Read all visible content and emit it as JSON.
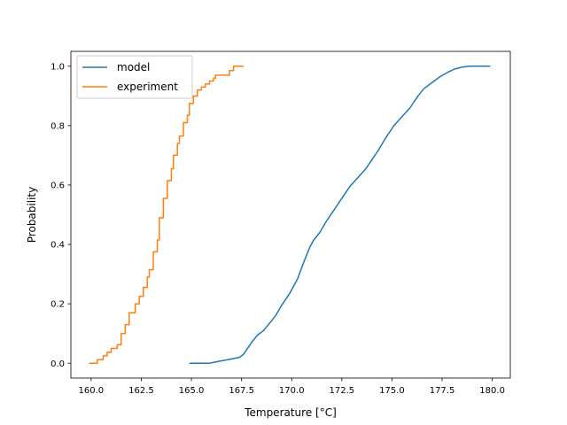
{
  "chart_data": {
    "type": "line",
    "title": "",
    "xlabel": "Temperature [°C]",
    "ylabel": "Probability",
    "xlim": [
      158.99,
      180.9
    ],
    "ylim": [
      -0.05,
      1.05
    ],
    "x_ticks": [
      160.0,
      162.5,
      165.0,
      167.5,
      170.0,
      172.5,
      175.0,
      177.5,
      180.0
    ],
    "x_tick_labels": [
      "160.0",
      "162.5",
      "165.0",
      "167.5",
      "170.0",
      "172.5",
      "175.0",
      "177.5",
      "180.0"
    ],
    "y_ticks": [
      0.0,
      0.2,
      0.4,
      0.6,
      0.8,
      1.0
    ],
    "y_tick_labels": [
      "0.0",
      "0.2",
      "0.4",
      "0.6",
      "0.8",
      "1.0"
    ],
    "grid": false,
    "legend": {
      "placement": "top-left",
      "entries": [
        "model",
        "experiment"
      ]
    },
    "series": [
      {
        "name": "model",
        "color": "#1f77b4",
        "style": "line",
        "x": [
          164.9,
          165.4,
          165.9,
          166.4,
          166.9,
          167.4,
          167.6,
          167.8,
          168.0,
          168.3,
          168.6,
          168.9,
          169.2,
          169.5,
          169.9,
          170.3,
          170.6,
          170.9,
          171.1,
          171.4,
          171.7,
          172.0,
          172.3,
          172.6,
          172.9,
          173.3,
          173.7,
          174.0,
          174.3,
          174.7,
          175.1,
          175.5,
          175.9,
          176.3,
          176.6,
          177.0,
          177.4,
          177.8,
          178.1,
          178.5,
          178.9,
          179.4,
          179.9
        ],
        "y": [
          0.0,
          0.0,
          0.0,
          0.007,
          0.013,
          0.02,
          0.03,
          0.05,
          0.07,
          0.095,
          0.11,
          0.135,
          0.16,
          0.195,
          0.235,
          0.285,
          0.34,
          0.39,
          0.415,
          0.44,
          0.475,
          0.505,
          0.535,
          0.565,
          0.595,
          0.625,
          0.655,
          0.685,
          0.715,
          0.76,
          0.8,
          0.83,
          0.86,
          0.9,
          0.925,
          0.945,
          0.965,
          0.98,
          0.99,
          0.997,
          1.0,
          1.0,
          1.0
        ]
      },
      {
        "name": "experiment",
        "color": "#ff7f0e",
        "style": "step",
        "x": [
          159.9,
          160.3,
          160.6,
          160.8,
          161.0,
          161.3,
          161.5,
          161.7,
          161.9,
          162.2,
          162.4,
          162.6,
          162.8,
          162.9,
          163.1,
          163.3,
          163.4,
          163.6,
          163.8,
          164.0,
          164.1,
          164.3,
          164.4,
          164.6,
          164.8,
          164.9,
          165.1,
          165.3,
          165.5,
          165.7,
          165.9,
          166.1,
          166.2,
          166.4,
          166.9,
          167.1,
          167.3,
          167.6
        ],
        "y": [
          0.0,
          0.012,
          0.025,
          0.037,
          0.05,
          0.062,
          0.1,
          0.13,
          0.17,
          0.2,
          0.225,
          0.255,
          0.29,
          0.315,
          0.375,
          0.415,
          0.49,
          0.555,
          0.615,
          0.655,
          0.7,
          0.74,
          0.765,
          0.81,
          0.835,
          0.875,
          0.9,
          0.92,
          0.93,
          0.94,
          0.95,
          0.96,
          0.97,
          0.97,
          0.985,
          1.0,
          1.0,
          1.0
        ]
      }
    ]
  }
}
